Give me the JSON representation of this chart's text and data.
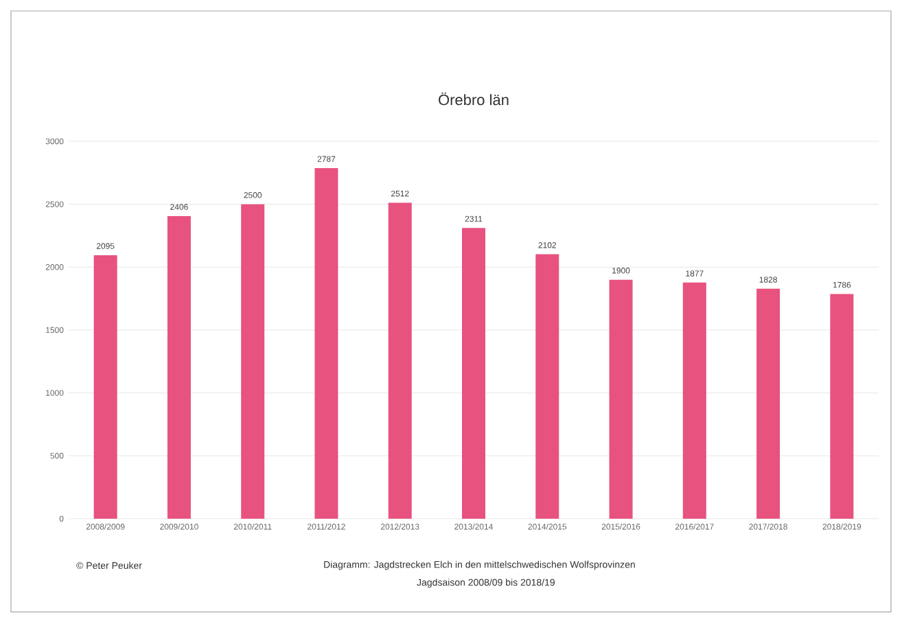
{
  "chart_data": {
    "type": "bar",
    "title": "Örebro län",
    "categories": [
      "2008/2009",
      "2009/2010",
      "2010/2011",
      "2011/2012",
      "2012/2013",
      "2013/2014",
      "2014/2015",
      "2015/2016",
      "2016/2017",
      "2017/2018",
      "2018/2019"
    ],
    "values": [
      2095,
      2406,
      2500,
      2787,
      2512,
      2311,
      2102,
      1900,
      1877,
      1828,
      1786
    ],
    "color": "#e8527f",
    "ylim": [
      0,
      3000
    ],
    "yticks": [
      0,
      500,
      1000,
      1500,
      2000,
      2500,
      3000
    ],
    "grid": "y",
    "data_labels": true,
    "annotations": [
      "© Peter Peuker",
      "Diagramm:  Jagdstrecken Elch in den mittelschwedischen Wolfsprovinzen",
      "Jagdsaison 2008/09 bis 2018/19"
    ]
  }
}
